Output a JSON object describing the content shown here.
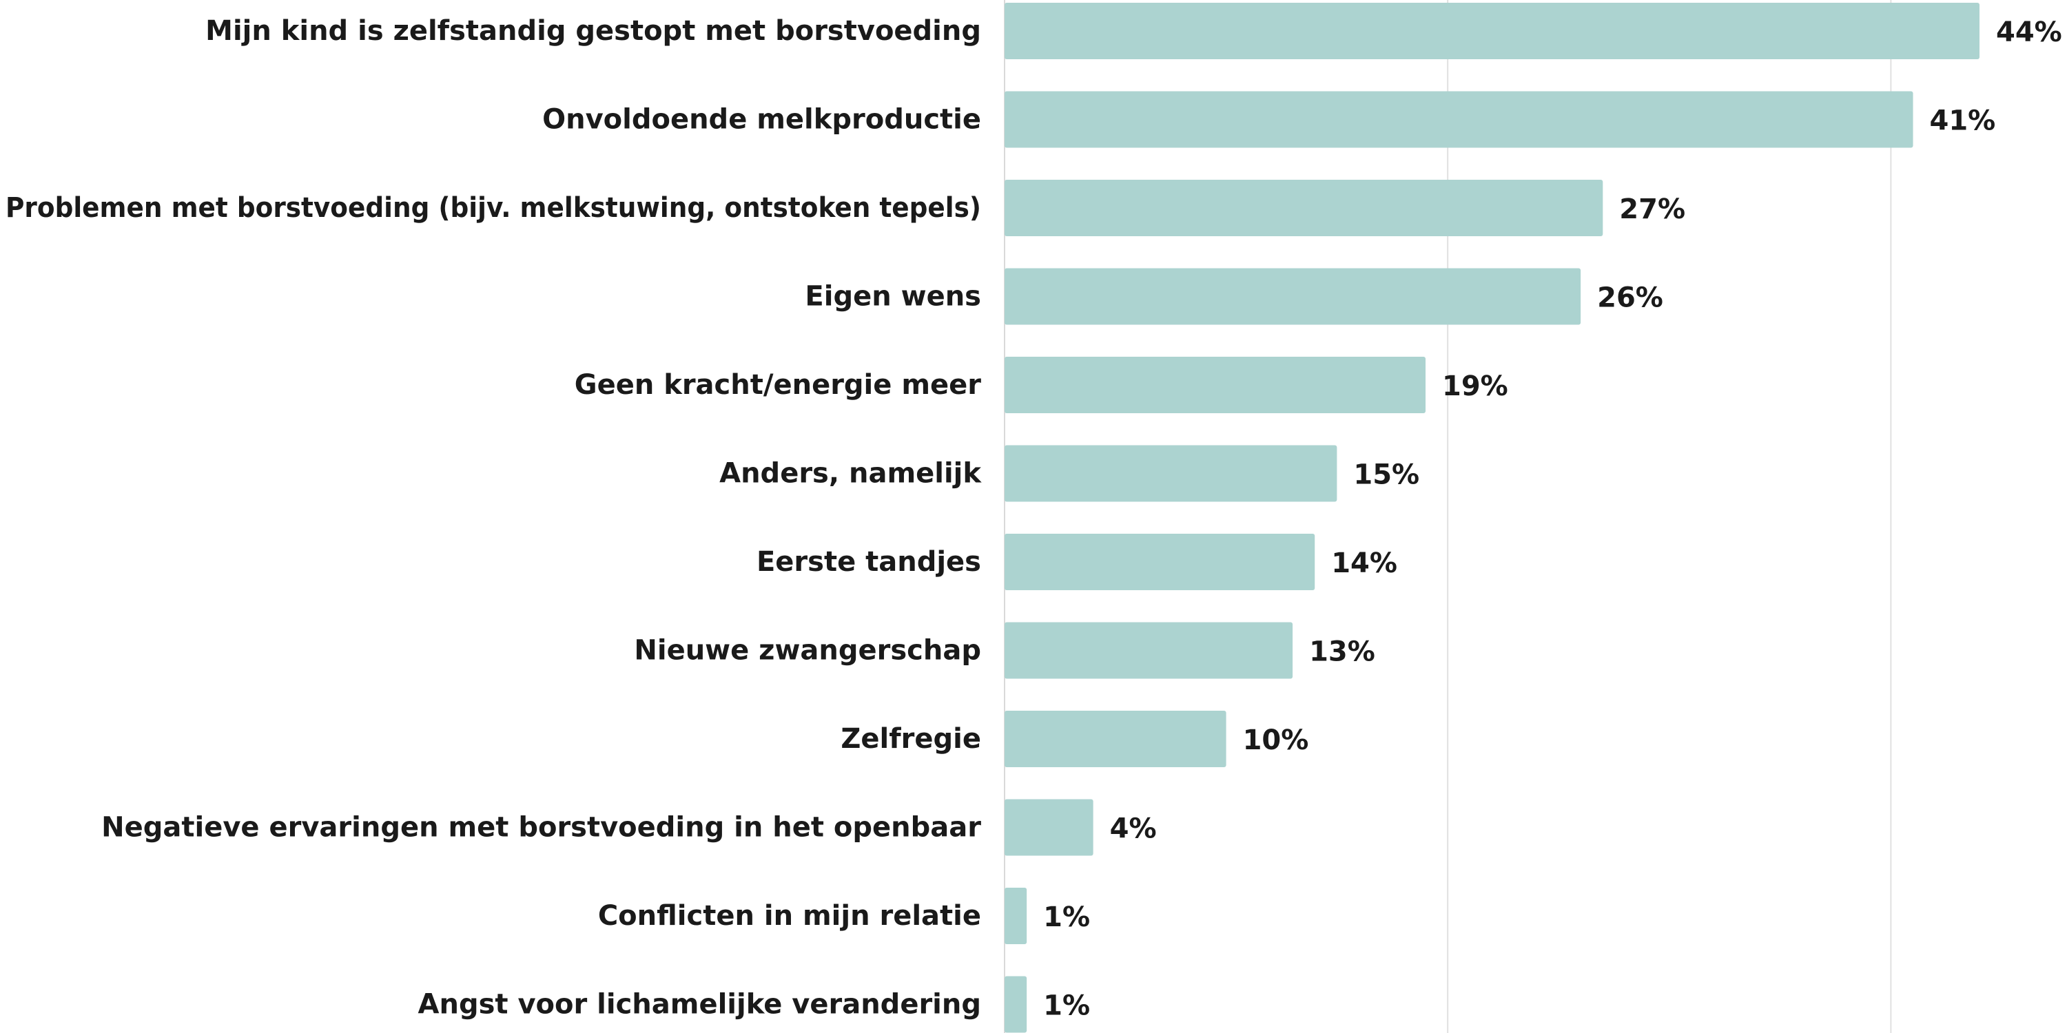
{
  "chart_data": {
    "type": "bar",
    "orientation": "horizontal",
    "categories": [
      "Mijn kind is zelfstandig gestopt met borstvoeding",
      "Onvoldoende melkproductie",
      "Problemen met borstvoeding (bijv. melkstuwing, ontstoken tepels)",
      "Eigen wens",
      "Geen kracht/energie meer",
      "Anders, namelijk",
      "Eerste tandjes",
      "Nieuwe zwangerschap",
      "Zelfregie",
      "Negatieve ervaringen met borstvoeding in het openbaar",
      "Conflicten in mijn relatie",
      "Angst voor lichamelijke verandering"
    ],
    "values": [
      44,
      41,
      27,
      26,
      19,
      15,
      14,
      13,
      10,
      4,
      1,
      1
    ],
    "value_labels": [
      "44%",
      "41%",
      "27%",
      "26%",
      "19%",
      "15%",
      "14%",
      "13%",
      "10%",
      "4%",
      "1%",
      "1%"
    ],
    "xlim": [
      0,
      44
    ],
    "gridlines": [
      20,
      40
    ],
    "grid": true,
    "legend": "none",
    "title": "",
    "xlabel": "",
    "ylabel": "",
    "colors": {
      "bar": "#acd3d0",
      "gridline": "#e0e0e0",
      "text": "#1a1a1a"
    }
  }
}
